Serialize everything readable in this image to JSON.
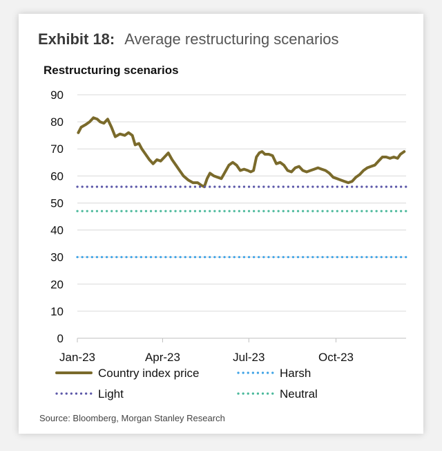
{
  "exhibit": {
    "number": "Exhibit 18:",
    "title": "Average restructuring scenarios"
  },
  "source": "Source: Bloomberg, Morgan Stanley Research",
  "chart_data": {
    "type": "line",
    "title": "Restructuring scenarios",
    "ylim": [
      0,
      90
    ],
    "yticks": [
      0,
      10,
      20,
      30,
      40,
      50,
      60,
      70,
      80,
      90
    ],
    "x_ticks": [
      "Jan-23",
      "Apr-23",
      "Jul-23",
      "Oct-23"
    ],
    "grid": true,
    "series": [
      {
        "name": "Country index price",
        "color": "#7a6a2b",
        "style": "solid",
        "points": [
          [
            "2023-01-02",
            76
          ],
          [
            "2023-01-05",
            78
          ],
          [
            "2023-01-10",
            79
          ],
          [
            "2023-01-14",
            80
          ],
          [
            "2023-01-18",
            81.5
          ],
          [
            "2023-01-22",
            81
          ],
          [
            "2023-01-25",
            80
          ],
          [
            "2023-01-29",
            79.5
          ],
          [
            "2023-02-02",
            81
          ],
          [
            "2023-02-06",
            78
          ],
          [
            "2023-02-10",
            74.5
          ],
          [
            "2023-02-15",
            75.5
          ],
          [
            "2023-02-20",
            75
          ],
          [
            "2023-02-24",
            76
          ],
          [
            "2023-02-28",
            75
          ],
          [
            "2023-03-03",
            71.5
          ],
          [
            "2023-03-07",
            72
          ],
          [
            "2023-03-10",
            70
          ],
          [
            "2023-03-14",
            68
          ],
          [
            "2023-03-18",
            66
          ],
          [
            "2023-03-22",
            64.5
          ],
          [
            "2023-03-26",
            66
          ],
          [
            "2023-03-30",
            65.5
          ],
          [
            "2023-04-03",
            67
          ],
          [
            "2023-04-07",
            68.5
          ],
          [
            "2023-04-11",
            66
          ],
          [
            "2023-04-15",
            64
          ],
          [
            "2023-04-19",
            62
          ],
          [
            "2023-04-23",
            60
          ],
          [
            "2023-04-28",
            58.5
          ],
          [
            "2023-05-03",
            57.5
          ],
          [
            "2023-05-08",
            57.5
          ],
          [
            "2023-05-12",
            56.5
          ],
          [
            "2023-05-15",
            56
          ],
          [
            "2023-05-18",
            59
          ],
          [
            "2023-05-21",
            61
          ],
          [
            "2023-05-25",
            60
          ],
          [
            "2023-05-29",
            59.5
          ],
          [
            "2023-06-02",
            59
          ],
          [
            "2023-06-06",
            61.5
          ],
          [
            "2023-06-10",
            64
          ],
          [
            "2023-06-14",
            65
          ],
          [
            "2023-06-18",
            64
          ],
          [
            "2023-06-22",
            62
          ],
          [
            "2023-06-26",
            62.5
          ],
          [
            "2023-06-30",
            62
          ],
          [
            "2023-07-03",
            61.5
          ],
          [
            "2023-07-06",
            62
          ],
          [
            "2023-07-09",
            67
          ],
          [
            "2023-07-12",
            68.5
          ],
          [
            "2023-07-15",
            69
          ],
          [
            "2023-07-18",
            68
          ],
          [
            "2023-07-22",
            68
          ],
          [
            "2023-07-26",
            67.5
          ],
          [
            "2023-07-30",
            64.5
          ],
          [
            "2023-08-03",
            65
          ],
          [
            "2023-08-07",
            64
          ],
          [
            "2023-08-11",
            62
          ],
          [
            "2023-08-15",
            61.5
          ],
          [
            "2023-08-19",
            63
          ],
          [
            "2023-08-23",
            63.5
          ],
          [
            "2023-08-27",
            62
          ],
          [
            "2023-08-31",
            61.5
          ],
          [
            "2023-09-04",
            62
          ],
          [
            "2023-09-08",
            62.5
          ],
          [
            "2023-09-12",
            63
          ],
          [
            "2023-09-16",
            62.5
          ],
          [
            "2023-09-20",
            62
          ],
          [
            "2023-09-24",
            61
          ],
          [
            "2023-09-28",
            59.5
          ],
          [
            "2023-10-02",
            59
          ],
          [
            "2023-10-06",
            58.5
          ],
          [
            "2023-10-10",
            58
          ],
          [
            "2023-10-14",
            57.5
          ],
          [
            "2023-10-18",
            58
          ],
          [
            "2023-10-22",
            59.5
          ],
          [
            "2023-10-26",
            60.5
          ],
          [
            "2023-10-30",
            62
          ],
          [
            "2023-11-03",
            63
          ],
          [
            "2023-11-07",
            63.5
          ],
          [
            "2023-11-11",
            64
          ],
          [
            "2023-11-15",
            65.5
          ],
          [
            "2023-11-19",
            67
          ],
          [
            "2023-11-23",
            67
          ],
          [
            "2023-11-27",
            66.5
          ],
          [
            "2023-12-01",
            67
          ],
          [
            "2023-12-05",
            66.5
          ],
          [
            "2023-12-08",
            68
          ],
          [
            "2023-12-12",
            69
          ]
        ]
      },
      {
        "name": "Harsh",
        "color": "#3fa3e6",
        "style": "dotted",
        "value": 30
      },
      {
        "name": "Light",
        "color": "#5b57a8",
        "style": "dotted",
        "value": 56
      },
      {
        "name": "Neutral",
        "color": "#49b89a",
        "style": "dotted",
        "value": 47
      }
    ],
    "legend": [
      "Country index price",
      "Harsh",
      "Light",
      "Neutral"
    ]
  }
}
